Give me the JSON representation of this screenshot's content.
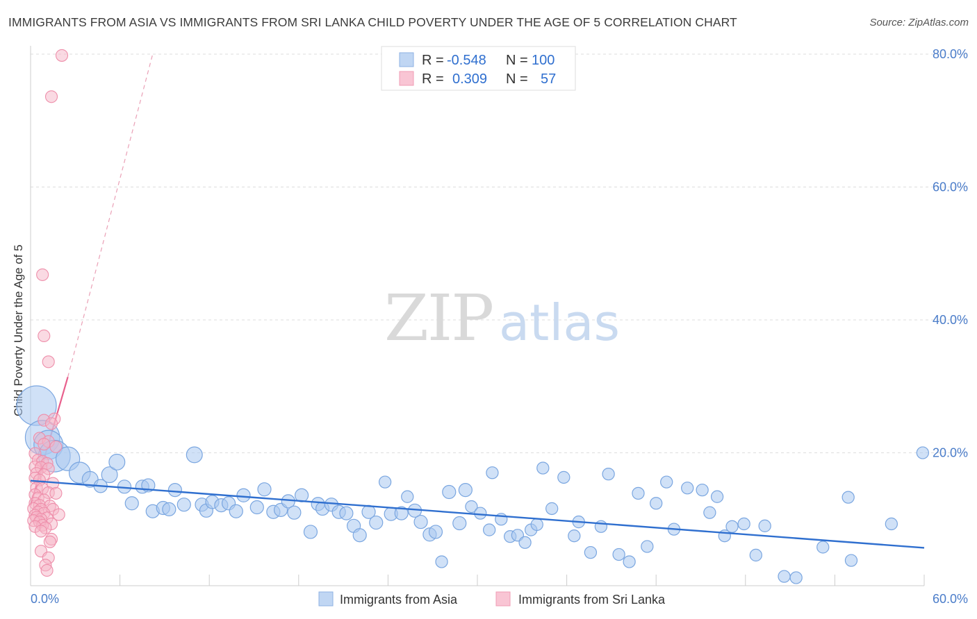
{
  "title": "IMMIGRANTS FROM ASIA VS IMMIGRANTS FROM SRI LANKA CHILD POVERTY UNDER THE AGE OF 5 CORRELATION CHART",
  "source": "Source: ZipAtlas.com",
  "watermark": {
    "zip": "ZIP",
    "atlas": "atlas"
  },
  "colors": {
    "asia_fill": "#a9c8f0",
    "asia_stroke": "#7aa6e0",
    "asia_line": "#2f6fcf",
    "lanka_fill": "#f6b6c8",
    "lanka_stroke": "#ee8eaa",
    "lanka_line": "#e8608d",
    "tick_label": "#4a7cc9",
    "grid": "#dddddd"
  },
  "legend": {
    "rows": [
      {
        "r_label": "R =",
        "r_value": "-0.548",
        "n_label": "N =",
        "n_value": "100"
      },
      {
        "r_label": "R =",
        "r_value": "0.309",
        "n_label": "N =",
        "n_value": "57"
      }
    ]
  },
  "chart_data": {
    "type": "scatter",
    "title": "IMMIGRANTS FROM ASIA VS IMMIGRANTS FROM SRI LANKA CHILD POVERTY UNDER THE AGE OF 5 CORRELATION CHART",
    "xlabel": "",
    "ylabel": "Child Poverty Under the Age of 5",
    "xlim": [
      0,
      60
    ],
    "ylim": [
      0,
      80
    ],
    "x_tick_labels": [
      "0.0%",
      "60.0%"
    ],
    "y_ticks": [
      20,
      40,
      60,
      80
    ],
    "y_tick_labels": [
      "20.0%",
      "40.0%",
      "60.0%",
      "80.0%"
    ],
    "grid": true,
    "legend_position": "bottom",
    "series": [
      {
        "name": "Immigrants from Asia",
        "r": -0.548,
        "n": 100,
        "trend": {
          "x": [
            0,
            60
          ],
          "y": [
            15.8,
            5.7
          ]
        },
        "points": [
          [
            0.4,
            27.1,
            3
          ],
          [
            0.8,
            22.3,
            2.6
          ],
          [
            1.2,
            21.2,
            2.2
          ],
          [
            1.6,
            19.5,
            2.4
          ],
          [
            2.5,
            19.1,
            1.8
          ],
          [
            3.3,
            17.0,
            1.6
          ],
          [
            4,
            16,
            1.2
          ],
          [
            4.7,
            15,
            1
          ],
          [
            5.3,
            16.7,
            1.2
          ],
          [
            5.8,
            18.6,
            1.2
          ],
          [
            6.3,
            14.9,
            1
          ],
          [
            6.8,
            12.4,
            1
          ],
          [
            7.5,
            14.9,
            1
          ],
          [
            7.9,
            15.1,
            1
          ],
          [
            8.2,
            11.2,
            1
          ],
          [
            8.9,
            11.7,
            1
          ],
          [
            9.3,
            11.5,
            1
          ],
          [
            9.7,
            14.4,
            1
          ],
          [
            10.3,
            12.2,
            1
          ],
          [
            11.0,
            19.7,
            1.2
          ],
          [
            11.5,
            12.2,
            1
          ],
          [
            11.8,
            11.3,
            1
          ],
          [
            12.2,
            12.6,
            1
          ],
          [
            12.8,
            12.1,
            1
          ],
          [
            13.3,
            12.4,
            1
          ],
          [
            13.8,
            11.2,
            1
          ],
          [
            14.3,
            13.6,
            1
          ],
          [
            15.2,
            11.8,
            1
          ],
          [
            15.7,
            14.5,
            1
          ],
          [
            16.3,
            11.1,
            1
          ],
          [
            16.8,
            11.4,
            1
          ],
          [
            17.3,
            12.7,
            1
          ],
          [
            17.7,
            11.0,
            1
          ],
          [
            18.2,
            13.6,
            1
          ],
          [
            18.8,
            8.1,
            1
          ],
          [
            19.3,
            12.3,
            1
          ],
          [
            19.6,
            11.6,
            1
          ],
          [
            20.2,
            12.2,
            1
          ],
          [
            20.7,
            11.1,
            1
          ],
          [
            21.2,
            10.9,
            1
          ],
          [
            21.7,
            9.0,
            1
          ],
          [
            22.1,
            7.6,
            1
          ],
          [
            22.7,
            11.1,
            1
          ],
          [
            23.2,
            9.5,
            1
          ],
          [
            23.8,
            15.6,
            0.9
          ],
          [
            24.2,
            10.8,
            1
          ],
          [
            24.9,
            10.9,
            1
          ],
          [
            25.3,
            13.4,
            0.9
          ],
          [
            25.8,
            11.3,
            1
          ],
          [
            26.2,
            9.6,
            1
          ],
          [
            26.8,
            7.7,
            1
          ],
          [
            27.2,
            8.1,
            1
          ],
          [
            27.6,
            3.6,
            0.9
          ],
          [
            28.1,
            14.1,
            1
          ],
          [
            28.8,
            9.4,
            1
          ],
          [
            29.2,
            14.4,
            1
          ],
          [
            29.6,
            11.9,
            0.9
          ],
          [
            30.2,
            10.9,
            0.9
          ],
          [
            30.8,
            8.4,
            0.9
          ],
          [
            31.0,
            17.0,
            0.9
          ],
          [
            31.6,
            10.0,
            0.9
          ],
          [
            32.2,
            7.4,
            0.9
          ],
          [
            32.7,
            7.6,
            0.9
          ],
          [
            33.2,
            6.5,
            0.9
          ],
          [
            33.6,
            8.4,
            0.9
          ],
          [
            34.0,
            9.2,
            0.9
          ],
          [
            34.4,
            17.7,
            0.9
          ],
          [
            35.0,
            11.6,
            0.9
          ],
          [
            35.8,
            16.3,
            0.9
          ],
          [
            36.5,
            7.5,
            0.9
          ],
          [
            36.8,
            9.6,
            0.9
          ],
          [
            37.6,
            5.0,
            0.9
          ],
          [
            38.3,
            8.9,
            0.9
          ],
          [
            38.8,
            16.8,
            0.9
          ],
          [
            39.5,
            4.7,
            0.9
          ],
          [
            40.2,
            3.6,
            0.9
          ],
          [
            40.8,
            13.9,
            0.9
          ],
          [
            41.4,
            5.9,
            0.9
          ],
          [
            42.0,
            12.4,
            0.9
          ],
          [
            42.7,
            15.6,
            0.9
          ],
          [
            43.2,
            8.5,
            0.9
          ],
          [
            44.1,
            14.7,
            0.9
          ],
          [
            45.1,
            14.4,
            0.9
          ],
          [
            45.6,
            11.0,
            0.9
          ],
          [
            46.1,
            13.4,
            0.9
          ],
          [
            46.6,
            7.5,
            0.9
          ],
          [
            47.1,
            8.9,
            0.9
          ],
          [
            47.9,
            9.3,
            0.9
          ],
          [
            48.7,
            4.6,
            0.9
          ],
          [
            49.3,
            9.0,
            0.9
          ],
          [
            50.6,
            1.4,
            0.9
          ],
          [
            51.4,
            1.2,
            0.9
          ],
          [
            53.2,
            5.8,
            0.9
          ],
          [
            54.9,
            13.3,
            0.9
          ],
          [
            55.1,
            3.8,
            0.9
          ],
          [
            57.8,
            9.3,
            0.9
          ],
          [
            59.9,
            20.0,
            0.9
          ]
        ]
      },
      {
        "name": "Immigrants from Sri Lanka",
        "r": 0.309,
        "n": 57,
        "trend": {
          "x": [
            0,
            2.5
          ],
          "y": [
            12.1,
            31.4
          ]
        },
        "trend_dashed": {
          "x": [
            2.5,
            8.2
          ],
          "y": [
            31.4,
            80
          ]
        },
        "points": [
          [
            2.1,
            79.8
          ],
          [
            1.4,
            73.6
          ],
          [
            0.8,
            46.8
          ],
          [
            0.9,
            37.6
          ],
          [
            1.2,
            33.7
          ],
          [
            1.6,
            25.1
          ],
          [
            0.9,
            24.9
          ],
          [
            1.4,
            24.4
          ],
          [
            0.6,
            22.2
          ],
          [
            1.2,
            21.7
          ],
          [
            0.9,
            21.3
          ],
          [
            1.7,
            20.9
          ],
          [
            0.3,
            19.9
          ],
          [
            0.5,
            18.9
          ],
          [
            0.8,
            18.7
          ],
          [
            1.1,
            18.4
          ],
          [
            0.3,
            17.9
          ],
          [
            0.7,
            17.8
          ],
          [
            1.2,
            17.6
          ],
          [
            0.4,
            16.9
          ],
          [
            0.9,
            16.7
          ],
          [
            0.3,
            16.2
          ],
          [
            0.6,
            15.9
          ],
          [
            1.5,
            15.4
          ],
          [
            0.4,
            14.7
          ],
          [
            0.8,
            14.6
          ],
          [
            1.2,
            14.0
          ],
          [
            1.7,
            13.9
          ],
          [
            0.3,
            13.7
          ],
          [
            0.5,
            13.2
          ],
          [
            0.9,
            12.9
          ],
          [
            0.3,
            12.4
          ],
          [
            0.6,
            12.1
          ],
          [
            1.3,
            12.0
          ],
          [
            0.2,
            11.6
          ],
          [
            0.7,
            11.5
          ],
          [
            1.5,
            11.5
          ],
          [
            0.5,
            11.1
          ],
          [
            0.9,
            10.9
          ],
          [
            1.9,
            10.7
          ],
          [
            0.3,
            10.6
          ],
          [
            0.4,
            10.3
          ],
          [
            1.1,
            10.2
          ],
          [
            0.7,
            10.0
          ],
          [
            0.2,
            9.8
          ],
          [
            0.6,
            9.6
          ],
          [
            1.4,
            9.3
          ],
          [
            0.8,
            9.1
          ],
          [
            0.3,
            8.9
          ],
          [
            1.0,
            8.7
          ],
          [
            0.7,
            8.2
          ],
          [
            1.4,
            7.0
          ],
          [
            1.3,
            6.6
          ],
          [
            0.7,
            5.2
          ],
          [
            1.2,
            4.2
          ],
          [
            1.0,
            3.1
          ],
          [
            1.1,
            2.3
          ]
        ]
      }
    ]
  }
}
